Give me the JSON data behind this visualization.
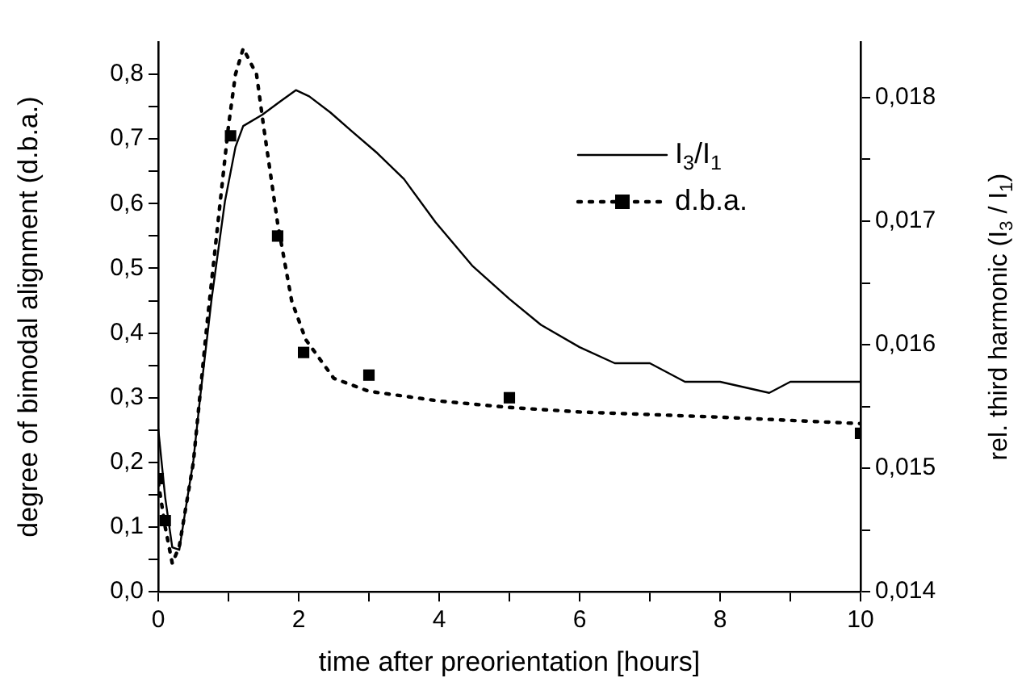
{
  "chart_data": {
    "type": "line",
    "xlabel": "time after preorientation [hours]",
    "ylabel": "degree of bimodal alignment (d.b.a.)",
    "y2label": "rel. third harmonic (I$_{3}$ / I$_{1}$)",
    "xlim": [
      0,
      10
    ],
    "xticks": [
      0,
      {
        "value": 1,
        "label": null
      },
      2,
      {
        "value": 3,
        "label": null
      },
      4,
      {
        "value": 5,
        "label": null
      },
      6,
      {
        "value": 7,
        "label": null
      },
      8,
      {
        "value": 9,
        "label": null
      },
      10
    ],
    "ylim": [
      0,
      0.85
    ],
    "yticks": [
      {
        "value": 0,
        "label": "0,0"
      },
      {
        "value": 0.05,
        "label": null
      },
      {
        "value": 0.1,
        "label": "0,1"
      },
      {
        "value": 0.15,
        "label": null
      },
      {
        "value": 0.2,
        "label": "0,2"
      },
      {
        "value": 0.25,
        "label": null
      },
      {
        "value": 0.3,
        "label": "0,3"
      },
      {
        "value": 0.35,
        "label": null
      },
      {
        "value": 0.4,
        "label": "0,4"
      },
      {
        "value": 0.45,
        "label": null
      },
      {
        "value": 0.5,
        "label": "0,5"
      },
      {
        "value": 0.55,
        "label": null
      },
      {
        "value": 0.6,
        "label": "0,6"
      },
      {
        "value": 0.65,
        "label": null
      },
      {
        "value": 0.7,
        "label": "0,7"
      },
      {
        "value": 0.75,
        "label": null
      },
      {
        "value": 0.8,
        "label": "0,8"
      }
    ],
    "y2lim": [
      0.014,
      0.01845
    ],
    "y2ticks": [
      {
        "value": 0.014,
        "label": "0,014"
      },
      {
        "value": 0.0145,
        "label": null
      },
      {
        "value": 0.015,
        "label": "0,015"
      },
      {
        "value": 0.0155,
        "label": null
      },
      {
        "value": 0.016,
        "label": "0,016"
      },
      {
        "value": 0.0165,
        "label": null
      },
      {
        "value": 0.017,
        "label": "0,017"
      },
      {
        "value": 0.0175,
        "label": null
      },
      {
        "value": 0.018,
        "label": "0,018"
      }
    ],
    "grid": false,
    "legend": "top right",
    "series": [
      {
        "name": "I$_{3}$/I$_{1}$",
        "type": "line",
        "axis": "y2",
        "color": "#000000",
        "line_style": "solid",
        "marker": "none",
        "x": [
          0,
          0.1,
          0.2,
          0.3,
          0.39,
          0.5,
          0.6,
          0.76,
          0.95,
          1.1,
          1.21,
          1.48,
          1.74,
          1.96,
          2.15,
          2.45,
          2.75,
          3.12,
          3.5,
          3.95,
          4.47,
          5.0,
          5.45,
          6.0,
          6.5,
          7.0,
          7.5,
          8.0,
          8.7,
          9.0,
          10
        ],
        "values": [
          0.01532,
          0.01476,
          0.01436,
          0.01434,
          0.01467,
          0.01506,
          0.01559,
          0.01637,
          0.01716,
          0.0176,
          0.01777,
          0.01786,
          0.01797,
          0.01806,
          0.01801,
          0.01788,
          0.01773,
          0.01755,
          0.01734,
          0.01699,
          0.01664,
          0.01637,
          0.01616,
          0.01598,
          0.01585,
          0.01585,
          0.0157,
          0.0157,
          0.01561,
          0.0157,
          0.0157
        ]
      },
      {
        "type": "line",
        "color": "#000000",
        "line_style": "dotted",
        "marker": "none",
        "x": [
          0,
          0.1,
          0.2,
          0.3,
          0.5,
          0.7,
          0.9,
          1.0,
          1.1,
          1.21,
          1.4,
          1.5,
          1.7,
          1.9,
          2.1,
          2.5,
          3.0,
          4,
          5,
          6,
          8,
          10
        ],
        "values": [
          0.17,
          0.1,
          0.044,
          0.07,
          0.2,
          0.42,
          0.62,
          0.72,
          0.8,
          0.84,
          0.8,
          0.72,
          0.57,
          0.45,
          0.39,
          0.33,
          0.31,
          0.295,
          0.285,
          0.278,
          0.27,
          0.26
        ]
      },
      {
        "name": "d.b.a.",
        "type": "scatter",
        "color": "#000000",
        "marker": "square",
        "line_style": "dotted",
        "x": [
          0,
          0.1,
          1.03,
          1.7,
          2.07,
          3.0,
          5.0,
          10
        ],
        "values": [
          0.175,
          0.11,
          0.705,
          0.55,
          0.37,
          0.335,
          0.3,
          0.245
        ]
      }
    ]
  }
}
